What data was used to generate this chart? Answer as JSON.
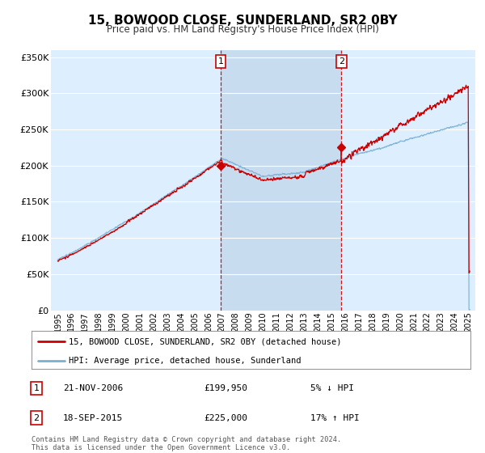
{
  "title": "15, BOWOOD CLOSE, SUNDERLAND, SR2 0BY",
  "subtitle": "Price paid vs. HM Land Registry's House Price Index (HPI)",
  "red_label": "15, BOWOOD CLOSE, SUNDERLAND, SR2 0BY (detached house)",
  "blue_label": "HPI: Average price, detached house, Sunderland",
  "transaction1_date": "21-NOV-2006",
  "transaction1_price": "£199,950",
  "transaction1_hpi": "5% ↓ HPI",
  "transaction2_date": "18-SEP-2015",
  "transaction2_price": "£225,000",
  "transaction2_hpi": "17% ↑ HPI",
  "footnote": "Contains HM Land Registry data © Crown copyright and database right 2024.\nThis data is licensed under the Open Government Licence v3.0.",
  "ylim": [
    0,
    360000
  ],
  "yticks": [
    0,
    50000,
    100000,
    150000,
    200000,
    250000,
    300000,
    350000
  ],
  "bg_color": "#ddeeff",
  "shade_color": "#c8dcf0",
  "grid_color": "#ffffff",
  "red_color": "#cc0000",
  "blue_color": "#7ab0d4",
  "transaction1_x": 2006.9,
  "transaction2_x": 2015.72,
  "transaction1_y": 199950,
  "transaction2_y": 225000,
  "xmin": 1995,
  "xmax": 2025
}
